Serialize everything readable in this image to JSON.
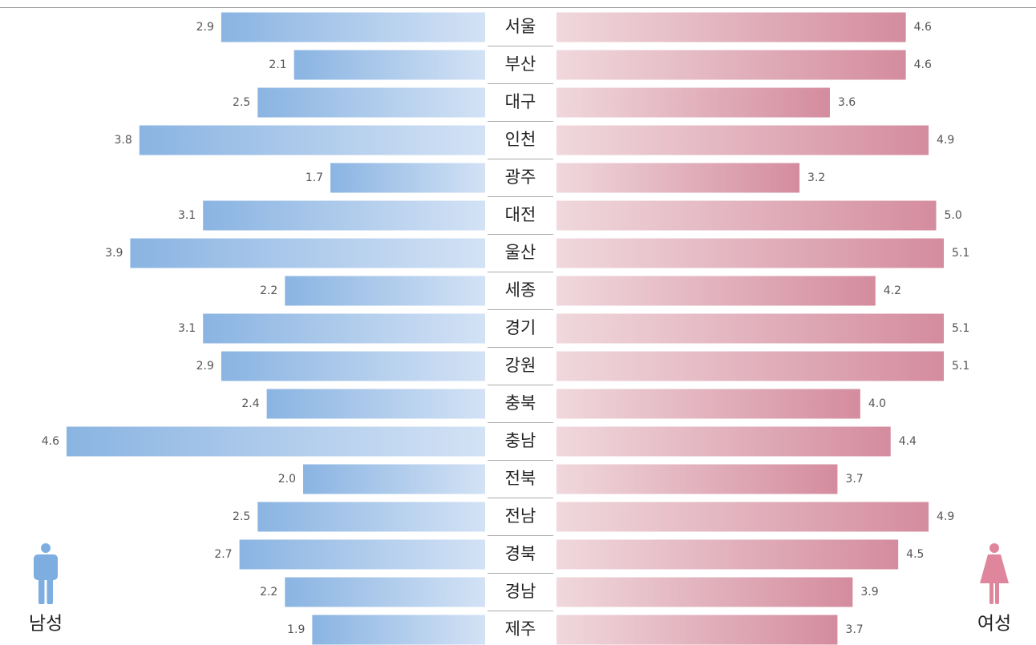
{
  "chart_data": {
    "type": "butterfly-bar",
    "categories": [
      "서울",
      "부산",
      "대구",
      "인천",
      "광주",
      "대전",
      "울산",
      "세종",
      "경기",
      "강원",
      "충북",
      "충남",
      "전북",
      "전남",
      "경북",
      "경남",
      "제주"
    ],
    "series": [
      {
        "name": "남성",
        "color": "#8ab4e2",
        "values": [
          2.9,
          2.1,
          2.5,
          3.8,
          1.7,
          3.1,
          3.9,
          2.2,
          3.1,
          2.9,
          2.4,
          4.6,
          2.0,
          2.5,
          2.7,
          2.2,
          1.9
        ],
        "value_labels": [
          "2.9",
          "2.1",
          "2.5",
          "3.8",
          "1.7",
          "3.1",
          "3.9",
          "2.2",
          "3.1",
          "2.9",
          "2.4",
          "4.6",
          "2.0",
          "2.5",
          "2.7",
          "2.2",
          "1.9"
        ]
      },
      {
        "name": "여성",
        "color": "#d48c9e",
        "values": [
          4.6,
          4.6,
          3.6,
          4.9,
          3.2,
          5.0,
          5.1,
          4.2,
          5.1,
          5.1,
          4.0,
          4.4,
          3.7,
          4.9,
          4.5,
          3.9,
          3.7
        ],
        "value_labels": [
          "4.6",
          "4.6",
          "3.6",
          "4.9",
          "3.2",
          "5.0",
          "5.1",
          "4.2",
          "5.1",
          "5.1",
          "4.0",
          "4.4",
          "3.7",
          "4.9",
          "4.5",
          "3.9",
          "3.7"
        ]
      }
    ]
  }
}
